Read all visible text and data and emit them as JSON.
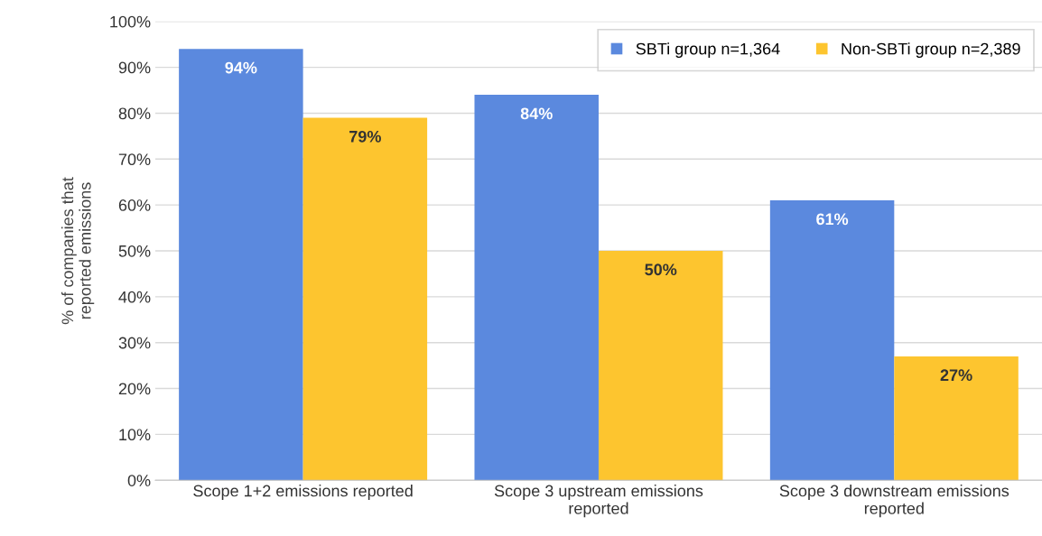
{
  "chart_data": {
    "type": "bar",
    "ylabel": "% of companies that\nreported emissions",
    "categories": [
      "Scope 1+2 emissions reported",
      "Scope 3 upstream emissions\nreported",
      "Scope 3 downstream emissions\nreported"
    ],
    "series": [
      {
        "name": "SBTi group n=1,364",
        "color": "#5b89de",
        "values": [
          94,
          84,
          61
        ],
        "value_labels": [
          "94%",
          "84%",
          "61%"
        ]
      },
      {
        "name": "Non-SBTi group n=2,389",
        "color": "#fdc52f",
        "values": [
          79,
          50,
          27
        ],
        "value_labels": [
          "79%",
          "50%",
          "27%"
        ]
      }
    ],
    "ylim": [
      0,
      100
    ],
    "yticks": [
      {
        "value": 0,
        "label": "0%"
      },
      {
        "value": 10,
        "label": "10%"
      },
      {
        "value": 20,
        "label": "20%"
      },
      {
        "value": 30,
        "label": "30%"
      },
      {
        "value": 40,
        "label": "40%"
      },
      {
        "value": 50,
        "label": "50%"
      },
      {
        "value": 60,
        "label": "60%"
      },
      {
        "value": 70,
        "label": "70%"
      },
      {
        "value": 80,
        "label": "80%"
      },
      {
        "value": 90,
        "label": "90%"
      },
      {
        "value": 100,
        "label": "100%"
      }
    ],
    "grid": "y",
    "legend": "top right"
  }
}
